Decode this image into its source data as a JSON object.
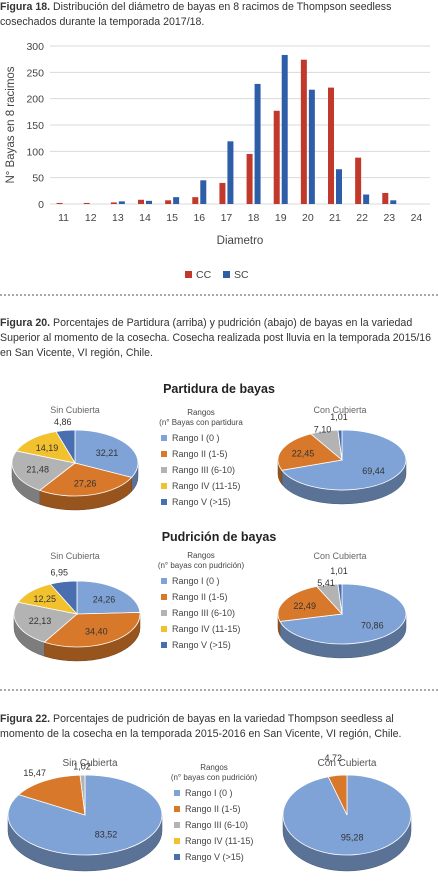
{
  "fig18": {
    "label": "Figura 18.",
    "text": "Distribución del diámetro de bayas en 8 racimos de Thompson seedless cosechados durante la temporada 2017/18."
  },
  "fig20": {
    "label": "Figura 20.",
    "text": "Porcentajes de Partidura (arriba) y pudrición (abajo) de bayas en la variedad Superior al momento de la cosecha. Cosecha realizada post lluvia en la temporada 2015/16 en San Vicente, VI región, Chile."
  },
  "fig22": {
    "label": "Figura 22.",
    "text": "Porcentajes de pudrición de bayas en la variedad Thompson seedless al momento de la cosecha en la temporada 2015-2016 en San Vicente, VI región, Chile."
  },
  "colors": {
    "cc": "#c0392b",
    "sc": "#2e5ea8",
    "rango1": "#7fa3d6",
    "rango2": "#d8782a",
    "rango3": "#b3b3b3",
    "rango4": "#f2c12e",
    "rango5": "#4a6fb0"
  },
  "legends": {
    "partidura_title": "Rangos",
    "partidura_subtitle": "(n° Bayas con partidura",
    "pudricion_title": "Rangos",
    "pudricion_subtitle": "(n° bayas con pudrición)",
    "items": [
      "Rango I (0 )",
      "Rango II (1-5)",
      "Rango III (6-10)",
      "Rango IV (11-15)",
      "Rango V (>15)"
    ]
  },
  "chart_data": [
    {
      "type": "bar",
      "title": "",
      "xlabel": "Diametro",
      "ylabel": "N° Bayas en 8 racimos",
      "ylim": [
        0,
        300
      ],
      "yticks": [
        0,
        50,
        100,
        150,
        200,
        250,
        300
      ],
      "categories": [
        "11",
        "12",
        "13",
        "14",
        "15",
        "16",
        "17",
        "18",
        "19",
        "20",
        "21",
        "22",
        "23",
        "24"
      ],
      "series": [
        {
          "name": "CC",
          "values": [
            2,
            2,
            3,
            8,
            7,
            13,
            40,
            95,
            177,
            274,
            221,
            88,
            21,
            0
          ]
        },
        {
          "name": "SC",
          "values": [
            0,
            0,
            5,
            6,
            13,
            45,
            119,
            228,
            283,
            217,
            66,
            18,
            7,
            0
          ]
        }
      ],
      "legend": "bottom",
      "grid": true
    },
    {
      "type": "pie",
      "title": "Partidura de bayas",
      "name": "Sin Cubierta",
      "values": [
        32.21,
        27.26,
        21.48,
        14.19,
        4.86
      ],
      "labels": [
        "32,21",
        "27,26",
        "21,48",
        "14,19",
        "4,86"
      ]
    },
    {
      "type": "pie",
      "title": "Partidura de bayas",
      "name": "Con Cubierta",
      "values": [
        69.44,
        22.45,
        7.1,
        0,
        1.01
      ],
      "labels": [
        "69,44",
        "22,45",
        "7,10",
        "",
        "1,01"
      ]
    },
    {
      "type": "pie",
      "title": "Pudrición de bayas",
      "name": "Sin Cubierta",
      "values": [
        24.26,
        34.4,
        22.13,
        12.25,
        6.95
      ],
      "labels": [
        "24,26",
        "34,40",
        "22,13",
        "12,25",
        "6,95"
      ]
    },
    {
      "type": "pie",
      "title": "Pudrición de bayas",
      "name": "Con Cubierta",
      "values": [
        70.86,
        22.49,
        5.41,
        0,
        1.01
      ],
      "labels": [
        "70,86",
        "22,49",
        "5,41",
        "",
        "1,01"
      ]
    },
    {
      "type": "pie",
      "title": "",
      "name": "Sin Cubierta",
      "values": [
        83.52,
        15.47,
        1.02,
        0,
        0
      ],
      "labels": [
        "83,52",
        "15,47",
        "1,02",
        "",
        ""
      ]
    },
    {
      "type": "pie",
      "title": "",
      "name": "Con Cubierta",
      "values": [
        95.28,
        4.72,
        0,
        0,
        0
      ],
      "labels": [
        "95,28",
        "4,72",
        "",
        "",
        ""
      ]
    }
  ]
}
